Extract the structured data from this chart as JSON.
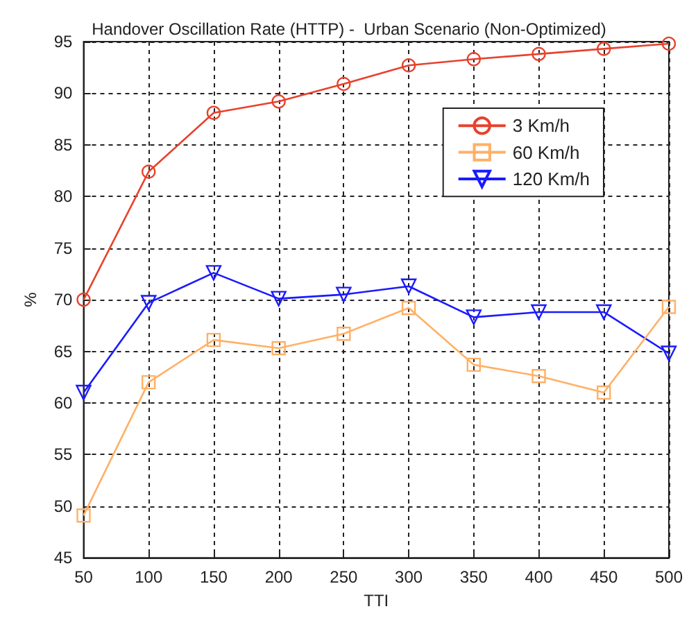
{
  "chart_data": {
    "type": "line",
    "title": "Handover Oscillation Rate (HTTP) -  Urban Scenario (Non-Optimized)",
    "xlabel": "TTI",
    "ylabel": "%",
    "x": [
      50,
      100,
      150,
      200,
      250,
      300,
      350,
      400,
      450,
      500
    ],
    "xlim": [
      50,
      500
    ],
    "xticks": [
      50,
      100,
      150,
      200,
      250,
      300,
      350,
      400,
      450,
      500
    ],
    "ylim": [
      45,
      95
    ],
    "yticks": [
      45,
      50,
      55,
      60,
      65,
      70,
      75,
      80,
      85,
      90,
      95
    ],
    "grid": true,
    "legend": "top right",
    "series": [
      {
        "name": "3 Km/h",
        "color": "#e8412c",
        "marker": "circle",
        "values": [
          70,
          82.4,
          88.1,
          89.2,
          90.9,
          92.7,
          93.3,
          93.8,
          94.3,
          94.8
        ]
      },
      {
        "name": "60 Km/h",
        "color": "#ffb066",
        "marker": "square",
        "values": [
          49.1,
          62,
          66.1,
          65.3,
          66.7,
          69.2,
          63.7,
          62.6,
          61,
          69.3
        ]
      },
      {
        "name": "120 Km/h",
        "color": "#1a1aff",
        "marker": "triangle",
        "values": [
          61,
          69.7,
          72.6,
          70.1,
          70.5,
          71.3,
          68.3,
          68.8,
          68.8,
          64.8
        ]
      }
    ]
  }
}
